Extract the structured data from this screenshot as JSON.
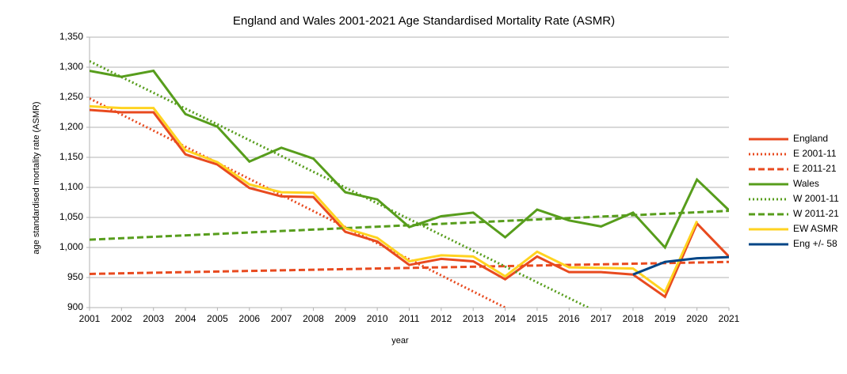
{
  "chart_data": {
    "type": "line",
    "title": "England and Wales 2001-2021 Age Standardised Mortality Rate (ASMR)",
    "xlabel": "year",
    "ylabel": "age standardised mortality rate (ASMR)",
    "x": [
      2001,
      2002,
      2003,
      2004,
      2005,
      2006,
      2007,
      2008,
      2009,
      2010,
      2011,
      2012,
      2013,
      2014,
      2015,
      2016,
      2017,
      2018,
      2019,
      2020,
      2021
    ],
    "xlim": [
      2001,
      2021
    ],
    "xticks": [
      2001,
      2002,
      2003,
      2004,
      2005,
      2006,
      2007,
      2008,
      2009,
      2010,
      2011,
      2012,
      2013,
      2014,
      2015,
      2016,
      2017,
      2018,
      2019,
      2020,
      2021
    ],
    "ylim": [
      900,
      1350
    ],
    "yticks": [
      900,
      950,
      {
        "value": 1000,
        "label": "1,000"
      },
      {
        "value": 1050,
        "label": "1,050"
      },
      {
        "value": 1100,
        "label": "1,100"
      },
      {
        "value": 1150,
        "label": "1,150"
      },
      {
        "value": 1200,
        "label": "1,200"
      },
      {
        "value": 1250,
        "label": "1,250"
      },
      {
        "value": 1300,
        "label": "1,300"
      },
      {
        "value": 1350,
        "label": "1,350"
      }
    ],
    "grid": true,
    "legend": "right",
    "series": [
      {
        "name": "England",
        "color": "#e84a1f",
        "dash": "solid",
        "width": 3,
        "values": [
          1229,
          1225,
          1225,
          1155,
          1138,
          1099,
          1085,
          1084,
          1026,
          1010,
          971,
          981,
          977,
          947,
          985,
          959,
          959,
          955,
          918,
          1040,
          985
        ]
      },
      {
        "name": "E 2001-11",
        "color": "#e84a1f",
        "dash": "dotted",
        "width": 3,
        "x": [
          2001,
          2014
        ],
        "values": [
          1248,
          900
        ]
      },
      {
        "name": "E 2011-21",
        "color": "#e84a1f",
        "dash": "dashed",
        "width": 3,
        "x": [
          2001,
          2021
        ],
        "values": [
          956,
          976
        ]
      },
      {
        "name": "Wales",
        "color": "#579d1c",
        "dash": "solid",
        "width": 3,
        "values": [
          1294,
          1284,
          1294,
          1222,
          1201,
          1143,
          1166,
          1148,
          1092,
          1080,
          1034,
          1052,
          1058,
          1017,
          1063,
          1045,
          1035,
          1058,
          1000,
          1113,
          1062
        ]
      },
      {
        "name": "W 2001-11",
        "color": "#579d1c",
        "dash": "dotted",
        "width": 3,
        "x": [
          2001,
          2016.6
        ],
        "values": [
          1310,
          900
        ]
      },
      {
        "name": "W 2011-21",
        "color": "#579d1c",
        "dash": "dashed",
        "width": 3,
        "x": [
          2001,
          2021
        ],
        "values": [
          1013,
          1061
        ]
      },
      {
        "name": "EW ASMR",
        "color": "#ffd320",
        "dash": "solid",
        "width": 3,
        "values": [
          1235,
          1232,
          1232,
          1162,
          1142,
          1105,
          1092,
          1091,
          1032,
          1016,
          977,
          987,
          985,
          952,
          993,
          967,
          966,
          965,
          926,
          1044,
          null
        ]
      },
      {
        "name": "Eng +/- 58",
        "color": "#004586",
        "dash": "solid",
        "width": 3,
        "values": [
          null,
          null,
          null,
          null,
          null,
          null,
          null,
          null,
          null,
          null,
          null,
          null,
          null,
          null,
          null,
          null,
          null,
          955,
          976,
          982,
          984
        ]
      }
    ]
  }
}
